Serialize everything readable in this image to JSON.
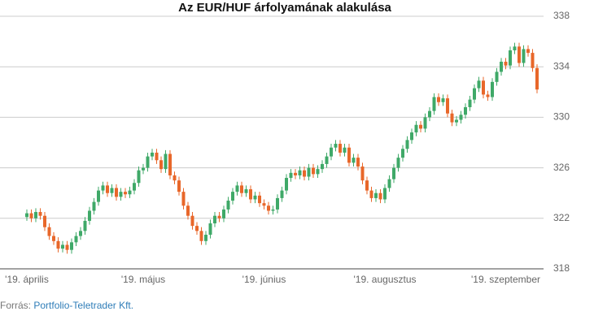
{
  "chart_data": {
    "type": "candlestick",
    "title": "Az EUR/HUF árfolyamának alakulása",
    "source_label": "Forrás:",
    "source": "Portfolio-Teletrader Kft.",
    "categories": [
      "'19. április",
      null,
      null,
      null,
      null,
      null,
      null,
      null,
      null,
      null,
      null,
      null,
      null,
      null,
      null,
      null,
      null,
      null,
      null,
      null,
      null,
      null,
      null,
      null,
      null,
      null,
      "'19. május",
      null,
      null,
      null,
      null,
      null,
      null,
      null,
      null,
      null,
      null,
      null,
      null,
      null,
      null,
      null,
      null,
      null,
      null,
      null,
      null,
      null,
      null,
      null,
      null,
      null,
      null,
      "'19. június",
      null,
      null,
      null,
      null,
      null,
      null,
      null,
      null,
      null,
      null,
      null,
      null,
      null,
      null,
      null,
      null,
      null,
      null,
      null,
      null,
      null,
      null,
      null,
      null,
      null,
      null,
      "'19. augusztus",
      null,
      null,
      null,
      null,
      null,
      null,
      null,
      null,
      null,
      null,
      null,
      null,
      null,
      null,
      null,
      null,
      null,
      null,
      null,
      null,
      null,
      null,
      null,
      null,
      null,
      null,
      "'19. szeptember",
      null,
      null,
      null,
      null,
      null,
      null,
      null
    ],
    "open": [
      322.1,
      322.4,
      322.0,
      322.5,
      322.2,
      321.3,
      320.6,
      320.2,
      319.6,
      319.9,
      319.5,
      320.1,
      320.6,
      321.0,
      321.8,
      322.6,
      323.3,
      324.2,
      324.6,
      324.0,
      324.4,
      323.7,
      324.1,
      323.9,
      324.2,
      324.8,
      325.8,
      326.0,
      326.9,
      327.2,
      326.6,
      325.9,
      327.1,
      325.4,
      325.0,
      324.1,
      323.0,
      322.2,
      321.4,
      321.0,
      320.2,
      320.7,
      321.6,
      322.2,
      322.0,
      322.7,
      323.4,
      324.1,
      324.6,
      324.0,
      324.3,
      323.5,
      323.8,
      323.2,
      323.0,
      322.6,
      322.7,
      323.6,
      324.2,
      325.2,
      325.6,
      325.4,
      325.8,
      325.3,
      326.0,
      325.5,
      325.9,
      326.3,
      326.9,
      327.6,
      327.9,
      327.2,
      327.6,
      326.4,
      326.8,
      326.1,
      325.0,
      324.2,
      323.6,
      324.0,
      323.5,
      324.4,
      325.1,
      326.0,
      326.8,
      327.5,
      328.2,
      328.8,
      329.4,
      329.1,
      330.0,
      330.5,
      331.6,
      331.2,
      331.5,
      330.3,
      329.6,
      329.8,
      330.2,
      330.8,
      331.4,
      332.3,
      332.9,
      331.8,
      331.6,
      332.8,
      333.6,
      334.4,
      334.1,
      335.3,
      335.6,
      334.3,
      335.4,
      335.1,
      333.9
    ],
    "high": [
      322.7,
      322.7,
      322.8,
      322.8,
      322.5,
      321.6,
      320.9,
      320.5,
      320.2,
      320.2,
      320.4,
      320.9,
      321.3,
      322.1,
      322.9,
      323.6,
      324.5,
      324.9,
      324.9,
      324.7,
      324.7,
      324.4,
      324.4,
      324.5,
      325.1,
      326.1,
      326.3,
      327.2,
      327.5,
      327.5,
      326.9,
      327.4,
      327.4,
      325.7,
      325.3,
      324.4,
      323.3,
      322.5,
      321.7,
      321.3,
      321.0,
      321.9,
      322.5,
      322.5,
      323.0,
      323.7,
      324.4,
      324.9,
      324.9,
      324.6,
      324.6,
      324.1,
      324.1,
      323.5,
      323.3,
      323.0,
      323.9,
      324.5,
      325.5,
      325.9,
      325.9,
      326.1,
      326.1,
      326.3,
      326.3,
      326.2,
      326.6,
      327.2,
      327.9,
      328.2,
      328.2,
      327.9,
      327.9,
      327.1,
      327.1,
      326.4,
      325.3,
      324.5,
      324.3,
      324.3,
      324.7,
      325.4,
      326.3,
      327.1,
      327.8,
      328.5,
      329.1,
      329.7,
      329.7,
      330.3,
      330.8,
      331.9,
      331.9,
      331.8,
      331.8,
      330.6,
      330.1,
      330.5,
      331.1,
      331.7,
      332.6,
      333.2,
      333.2,
      332.1,
      333.1,
      333.9,
      334.7,
      334.7,
      335.6,
      335.9,
      335.9,
      335.7,
      335.7,
      335.4,
      334.2
    ],
    "low": [
      321.8,
      321.7,
      321.7,
      321.9,
      321.0,
      320.3,
      319.9,
      319.3,
      319.3,
      319.2,
      319.2,
      319.8,
      320.3,
      320.7,
      321.5,
      322.3,
      323.0,
      323.9,
      323.7,
      323.7,
      323.4,
      323.4,
      323.6,
      323.6,
      323.9,
      324.5,
      325.5,
      325.7,
      326.6,
      326.3,
      325.6,
      325.6,
      325.1,
      324.7,
      323.8,
      322.7,
      321.9,
      321.1,
      320.7,
      319.9,
      319.9,
      320.4,
      321.3,
      321.7,
      321.7,
      322.4,
      323.1,
      323.8,
      323.7,
      323.7,
      323.2,
      323.2,
      322.9,
      322.7,
      322.3,
      322.3,
      322.4,
      323.3,
      323.9,
      324.9,
      325.1,
      325.1,
      325.0,
      325.0,
      325.2,
      325.2,
      325.6,
      326.0,
      326.6,
      327.3,
      326.9,
      326.9,
      326.1,
      326.1,
      325.8,
      324.7,
      323.9,
      323.3,
      323.3,
      323.2,
      323.2,
      324.1,
      324.8,
      325.7,
      326.5,
      327.2,
      327.9,
      328.5,
      328.8,
      328.8,
      329.7,
      330.2,
      330.9,
      330.9,
      330.0,
      329.3,
      329.3,
      329.5,
      329.9,
      330.5,
      331.1,
      332.0,
      331.5,
      331.3,
      331.3,
      332.5,
      333.3,
      333.8,
      333.8,
      335.0,
      334.0,
      334.0,
      334.8,
      333.6,
      331.9
    ],
    "close": [
      322.4,
      322.0,
      322.5,
      322.2,
      321.3,
      320.6,
      320.2,
      319.6,
      319.9,
      319.5,
      320.1,
      320.6,
      321.0,
      321.8,
      322.6,
      323.3,
      324.2,
      324.6,
      324.0,
      324.4,
      323.7,
      324.1,
      323.9,
      324.2,
      324.8,
      325.8,
      326.0,
      326.9,
      327.2,
      326.6,
      325.9,
      327.1,
      325.4,
      325.0,
      324.1,
      323.0,
      322.2,
      321.4,
      321.0,
      320.2,
      320.7,
      321.6,
      322.2,
      322.0,
      322.7,
      323.4,
      324.1,
      324.6,
      324.0,
      324.3,
      323.5,
      323.8,
      323.2,
      323.0,
      322.6,
      322.7,
      323.6,
      324.2,
      325.2,
      325.6,
      325.4,
      325.8,
      325.3,
      326.0,
      325.5,
      325.9,
      326.3,
      326.9,
      327.6,
      327.9,
      327.2,
      327.6,
      326.4,
      326.8,
      326.1,
      325.0,
      324.2,
      323.6,
      324.0,
      323.5,
      324.4,
      325.1,
      326.0,
      326.8,
      327.5,
      328.2,
      328.8,
      329.4,
      329.1,
      330.0,
      330.5,
      331.6,
      331.2,
      331.5,
      330.3,
      329.6,
      329.8,
      330.2,
      330.8,
      331.4,
      332.3,
      332.9,
      331.8,
      331.6,
      332.8,
      333.6,
      334.4,
      334.1,
      335.3,
      335.6,
      334.3,
      335.4,
      335.1,
      333.9,
      332.2
    ],
    "up_color": "#3fa968",
    "down_color": "#e8672a",
    "ylim": [
      318,
      338
    ],
    "yticks": [
      318,
      322,
      326,
      330,
      334,
      338
    ],
    "grid": true
  }
}
